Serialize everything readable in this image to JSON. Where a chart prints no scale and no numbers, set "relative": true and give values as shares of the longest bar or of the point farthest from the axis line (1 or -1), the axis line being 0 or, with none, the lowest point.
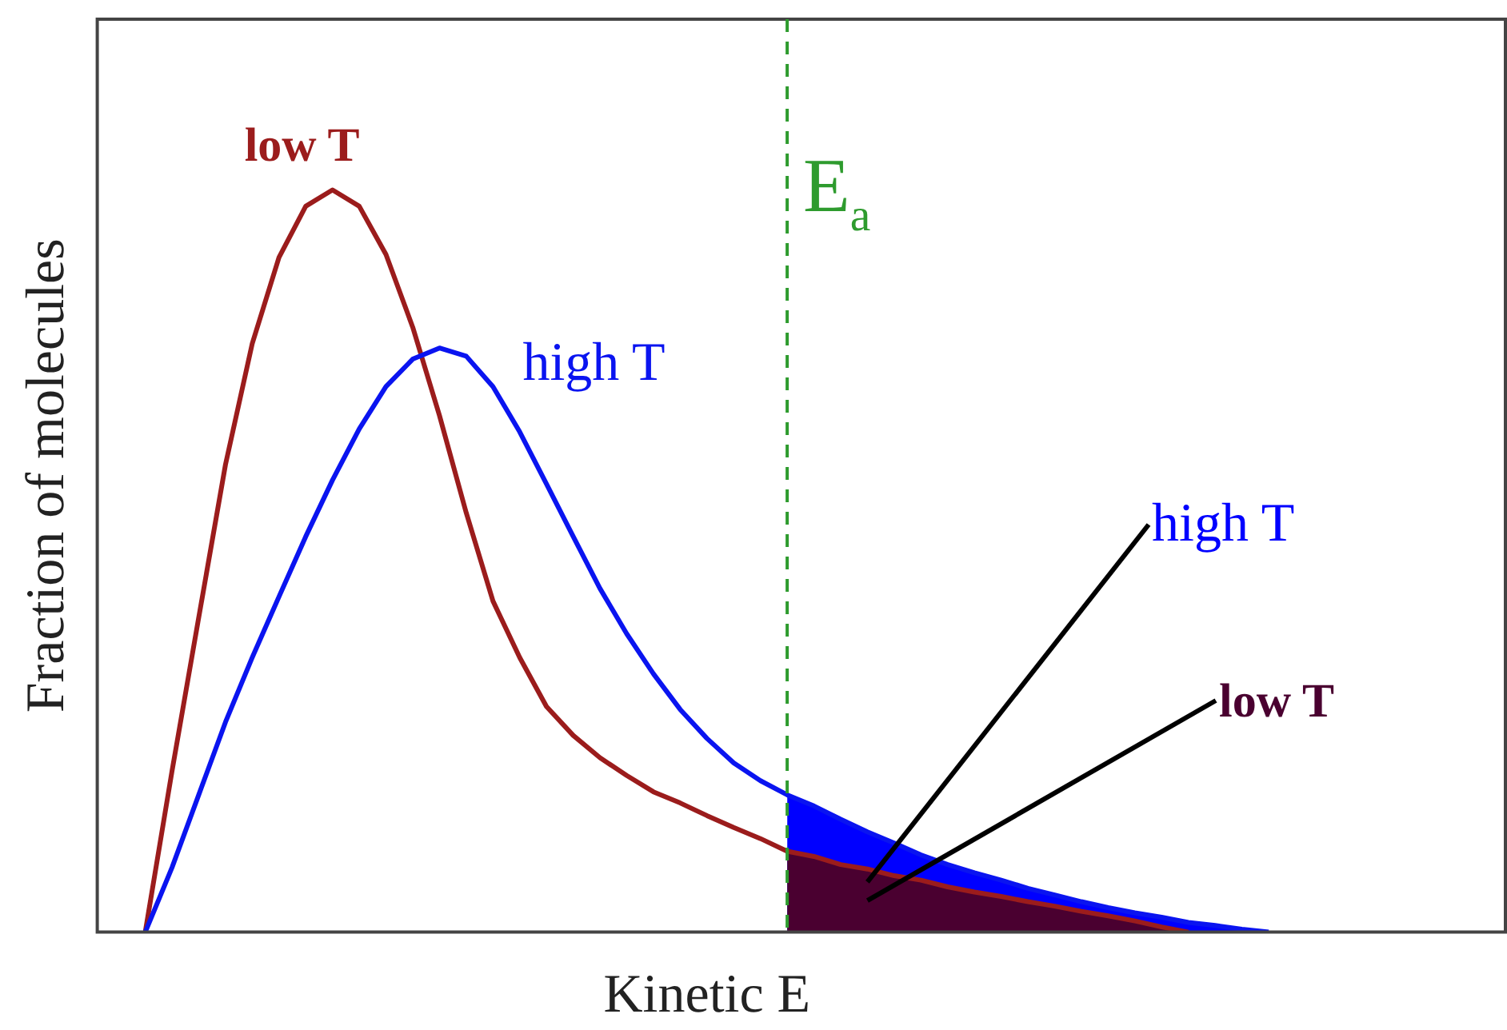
{
  "chart_data": {
    "type": "line",
    "relative": true,
    "xlabel": "Kinetic E",
    "ylabel": "Fraction of molecules",
    "legend": false,
    "marker": "none",
    "line_style": "solid",
    "categories": [
      null,
      null,
      null,
      null,
      null,
      null,
      null,
      null,
      null,
      null,
      null,
      null,
      null,
      null,
      null,
      null,
      null,
      null,
      null,
      null,
      null,
      null,
      null,
      null,
      null,
      null,
      null,
      null,
      null,
      null,
      null,
      null,
      null,
      null,
      null,
      null,
      null,
      null,
      null,
      null,
      null,
      null,
      null
    ],
    "ref_lines": [
      {
        "axis": "x",
        "label": "E$_{a}$",
        "color": "#2e9b2e",
        "line_style": "dashed"
      }
    ],
    "series": [
      {
        "name": "high T",
        "type": "area",
        "color": "#0000ff",
        "values": [
          null,
          null,
          null,
          null,
          null,
          null,
          null,
          null,
          null,
          null,
          null,
          null,
          null,
          null,
          null,
          null,
          null,
          null,
          null,
          null,
          null,
          null,
          null,
          null,
          0.185,
          0.17,
          0.152,
          0.135,
          0.12,
          0.104,
          0.091,
          0.08,
          0.07,
          0.059,
          0.05,
          0.041,
          0.033,
          0.026,
          0.02,
          0.013,
          0.009,
          0.004,
          0
        ]
      },
      {
        "name": "low T",
        "type": "area",
        "color": "#4a0030",
        "values": [
          null,
          null,
          null,
          null,
          null,
          null,
          null,
          null,
          null,
          null,
          null,
          null,
          null,
          null,
          null,
          null,
          null,
          null,
          null,
          null,
          null,
          null,
          null,
          null,
          0.109,
          0.102,
          0.091,
          0.085,
          0.076,
          0.07,
          0.061,
          0.054,
          0.048,
          0.041,
          0.035,
          0.028,
          0.022,
          0.015,
          0.007,
          0,
          null,
          null,
          null
        ]
      },
      {
        "name": "low T",
        "color": "#9b1c1c",
        "values": [
          0,
          0.217,
          0.424,
          0.63,
          0.793,
          0.909,
          0.978,
          1,
          0.978,
          0.913,
          0.815,
          0.696,
          0.565,
          0.446,
          0.37,
          0.304,
          0.265,
          0.235,
          0.211,
          0.189,
          0.174,
          0.157,
          0.141,
          0.126,
          0.109,
          0.102,
          0.091,
          0.085,
          0.076,
          0.07,
          0.061,
          0.054,
          0.048,
          0.041,
          0.035,
          0.028,
          0.022,
          0.015,
          0.007,
          0,
          null,
          null,
          null
        ]
      },
      {
        "name": "high T",
        "color": "#0a14f0",
        "values": [
          0,
          0.087,
          0.185,
          0.283,
          0.37,
          0.452,
          0.533,
          0.609,
          0.678,
          0.735,
          0.772,
          0.787,
          0.776,
          0.735,
          0.674,
          0.604,
          0.533,
          0.463,
          0.402,
          0.348,
          0.3,
          0.261,
          0.228,
          0.204,
          0.185,
          0.17,
          0.152,
          0.135,
          0.12,
          0.104,
          0.091,
          0.08,
          0.07,
          0.059,
          0.05,
          0.041,
          0.033,
          0.026,
          0.02,
          0.013,
          0.009,
          0.004,
          0
        ]
      }
    ]
  }
}
